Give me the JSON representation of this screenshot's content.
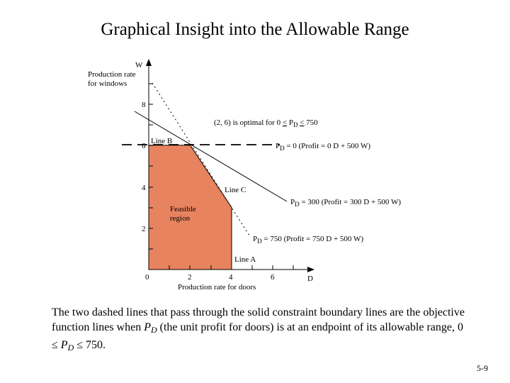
{
  "slide": {
    "title": "Graphical Insight into the Allowable Range",
    "number": "5-9"
  },
  "caption": {
    "before": "The two dashed lines that pass through the solid constraint boundary lines are the objective function lines when ",
    "var1": "P",
    "sub1": "D",
    "mid": " (the unit profit for doors) is at an endpoint of its allowable range, 0 ≤ ",
    "var2": "P",
    "sub2": "D",
    "after": " ≤ 750."
  },
  "diagram": {
    "axes": {
      "y_var": "W",
      "y_label_line1": "Production rate",
      "y_label_line2": "for windows",
      "x_var": "D",
      "x_label": "Production rate for doors",
      "origin": "0",
      "x_ticks": [
        "2",
        "4",
        "6"
      ],
      "y_ticks": [
        "2",
        "4",
        "6",
        "8"
      ]
    },
    "feasible_region": {
      "label_line1": "Feasible",
      "label_line2": "region",
      "fill": "#E8835F",
      "vertices": [
        [
          0,
          0
        ],
        [
          0,
          6
        ],
        [
          2,
          6
        ],
        [
          4,
          3
        ],
        [
          4,
          0
        ]
      ]
    },
    "constraint_labels": {
      "line_a": "Line A",
      "line_b": "Line B",
      "line_c": "Line C"
    },
    "optimal_note": {
      "text_before": "(2, 6) is optimal for 0 ",
      "le1": "<",
      "var": "P",
      "sub": "D",
      "le2": "<",
      "text_after": " 750"
    },
    "objective_lines": [
      {
        "prefix": "P",
        "sub": "D",
        "value_text": " = 0  (Profit = 0 D + 500 W)"
      },
      {
        "prefix": "P",
        "sub": "D",
        "value_text": " = 300  (Profit = 300 D + 500 W)"
      },
      {
        "prefix": "P",
        "sub": "D",
        "value_text": " = 750  (Profit = 750 D + 500 W)"
      }
    ]
  }
}
